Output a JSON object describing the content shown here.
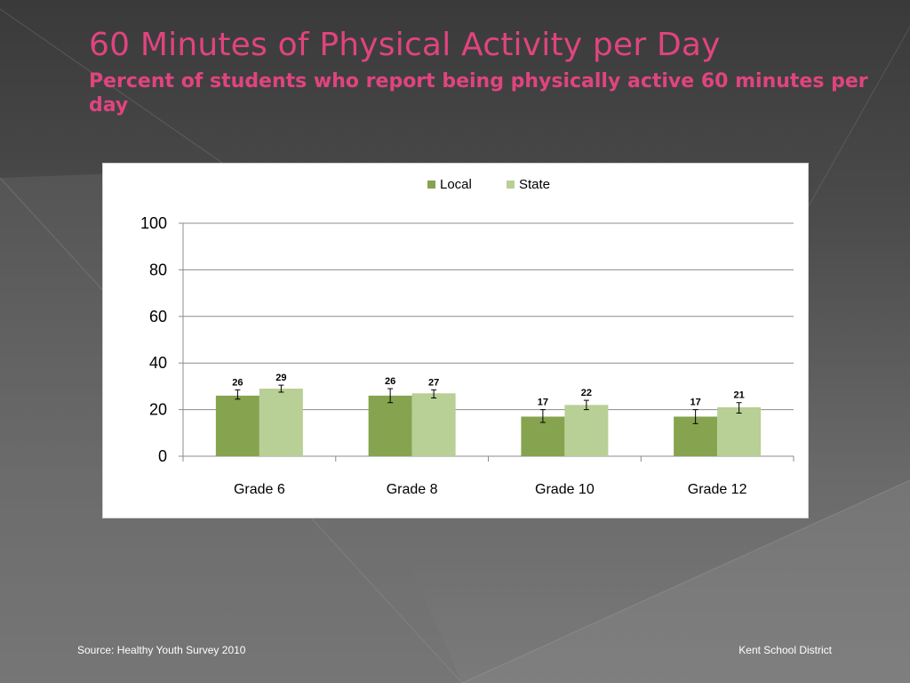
{
  "slide": {
    "title": "60 Minutes of Physical Activity per Day",
    "subtitle": "Percent of students who report being physically active 60 minutes per day",
    "source": "Source: Healthy Youth Survey 2010",
    "district": "Kent School District",
    "title_color": "#e0447e"
  },
  "chart_data": {
    "type": "bar",
    "title": "",
    "xlabel": "",
    "ylabel": "",
    "categories": [
      "Grade 6",
      "Grade 8",
      "Grade 10",
      "Grade 12"
    ],
    "series": [
      {
        "name": "Local",
        "color": "#86a34f",
        "values": [
          26,
          26,
          17,
          17
        ],
        "error": [
          [
            24.5,
            28.5
          ],
          [
            23,
            29
          ],
          [
            14.5,
            20
          ],
          [
            14,
            20
          ]
        ]
      },
      {
        "name": "State",
        "color": "#b8cf95",
        "values": [
          29,
          27,
          22,
          21
        ],
        "error": [
          [
            27.5,
            30.5
          ],
          [
            25,
            28.5
          ],
          [
            20,
            24
          ],
          [
            18.5,
            23
          ]
        ]
      }
    ],
    "ylim": [
      0,
      100
    ],
    "yticks": [
      0,
      20,
      40,
      60,
      80,
      100
    ],
    "legend_position": "top-center",
    "grid": true
  }
}
